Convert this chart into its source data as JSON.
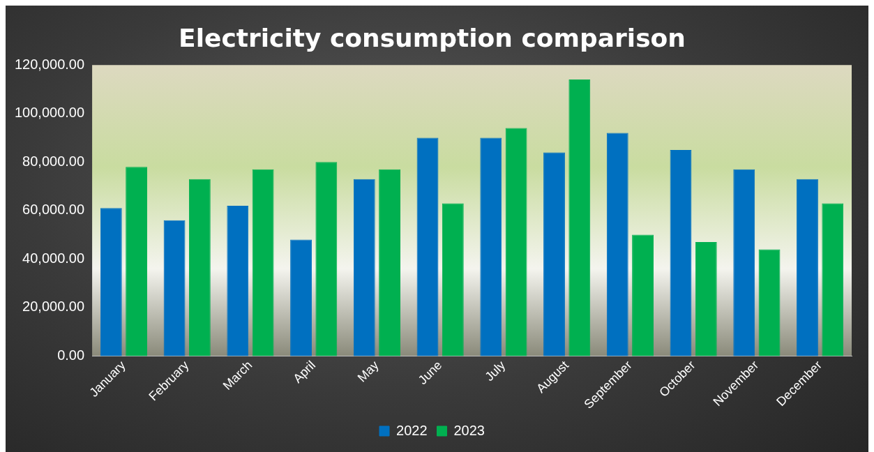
{
  "chart_data": {
    "type": "bar",
    "title": "Electricity consumption comparison",
    "categories": [
      "January",
      "February",
      "March",
      "April",
      "May",
      "June",
      "July",
      "August",
      "September",
      "October",
      "November",
      "December"
    ],
    "series": [
      {
        "name": "2022",
        "color": "#0070c0",
        "values": [
          61000,
          56000,
          62000,
          48000,
          73000,
          90000,
          90000,
          84000,
          92000,
          85000,
          77000,
          73000
        ]
      },
      {
        "name": "2023",
        "color": "#00b050",
        "values": [
          78000,
          73000,
          77000,
          80000,
          77000,
          63000,
          94000,
          114000,
          50000,
          47000,
          44000,
          63000
        ]
      }
    ],
    "ylim": [
      0,
      120000
    ],
    "yticks": [
      {
        "value": 0,
        "label": "0.00"
      },
      {
        "value": 20000,
        "label": "20,000.00"
      },
      {
        "value": 40000,
        "label": "40,000.00"
      },
      {
        "value": 60000,
        "label": "60,000.00"
      },
      {
        "value": 80000,
        "label": "80,000.00"
      },
      {
        "value": 100000,
        "label": "100,000.00"
      },
      {
        "value": 120000,
        "label": "120,000.00"
      }
    ],
    "grid": false,
    "legend": "bottom"
  }
}
